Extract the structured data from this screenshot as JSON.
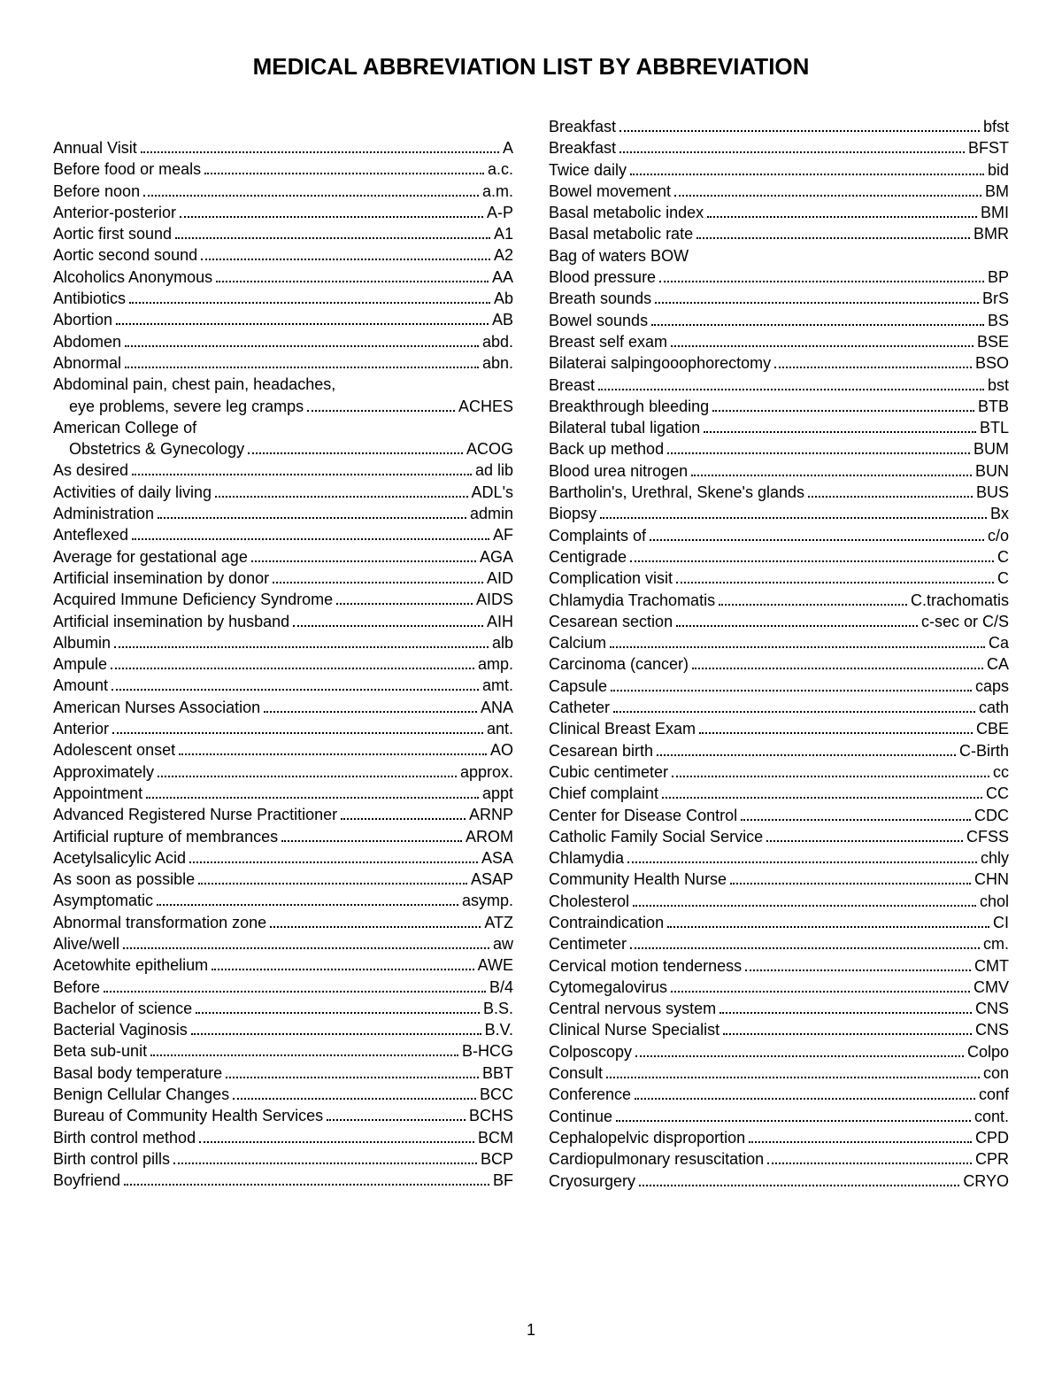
{
  "title": "MEDICAL ABBREVIATION LIST BY ABBREVIATION",
  "page_number": "1",
  "left": [
    {
      "term": "Annual Visit",
      "abbr": "A"
    },
    {
      "term": "Before food or meals",
      "abbr": "a.c."
    },
    {
      "term": "Before noon",
      "abbr": "a.m."
    },
    {
      "term": "Anterior-posterior",
      "abbr": "A-P"
    },
    {
      "term": "Aortic first sound",
      "abbr": "A1"
    },
    {
      "term": "Aortic second sound",
      "abbr": "A2"
    },
    {
      "term": "Alcoholics Anonymous",
      "abbr": "AA"
    },
    {
      "term": "Antibiotics",
      "abbr": "Ab"
    },
    {
      "term": "Abortion",
      "abbr": "AB"
    },
    {
      "term": "Abdomen",
      "abbr": "abd."
    },
    {
      "term": "Abnormal",
      "abbr": "abn."
    },
    {
      "multi": true,
      "line1": "Abdominal pain, chest pain, headaches,",
      "line2": "eye problems, severe leg cramps",
      "abbr": "ACHES"
    },
    {
      "multi": true,
      "line1": "American College of",
      "line2": "Obstetrics & Gynecology",
      "abbr": "ACOG"
    },
    {
      "term": "As desired",
      "abbr": "ad lib"
    },
    {
      "term": "Activities of daily living",
      "abbr": "ADL's"
    },
    {
      "term": "Administration",
      "abbr": "admin"
    },
    {
      "term": "Anteflexed",
      "abbr": "AF"
    },
    {
      "term": "Average for gestational age",
      "abbr": "AGA"
    },
    {
      "term": "Artificial insemination by donor",
      "abbr": "AID"
    },
    {
      "term": "Acquired Immune Deficiency Syndrome",
      "abbr": "AIDS"
    },
    {
      "term": "Artificial insemination by husband",
      "abbr": "AIH"
    },
    {
      "term": "Albumin",
      "abbr": "alb"
    },
    {
      "term": "Ampule",
      "abbr": "amp."
    },
    {
      "term": "Amount",
      "abbr": "amt."
    },
    {
      "term": "American Nurses Association",
      "abbr": "ANA"
    },
    {
      "term": "Anterior",
      "abbr": "ant."
    },
    {
      "term": "Adolescent onset",
      "abbr": "AO"
    },
    {
      "term": "Approximately",
      "abbr": "approx."
    },
    {
      "term": "Appointment",
      "abbr": "appt"
    },
    {
      "term": "Advanced Registered Nurse Practitioner",
      "abbr": "ARNP"
    },
    {
      "term": "Artificial rupture of membrances",
      "abbr": "AROM"
    },
    {
      "term": "Acetylsalicylic Acid",
      "abbr": "ASA"
    },
    {
      "term": "As soon as possible",
      "abbr": "ASAP"
    },
    {
      "term": "Asymptomatic",
      "abbr": "asymp."
    },
    {
      "term": "Abnormal transformation zone",
      "abbr": "ATZ"
    },
    {
      "term": "Alive/well",
      "abbr": "aw"
    },
    {
      "term": "Acetowhite epithelium",
      "abbr": "AWE"
    },
    {
      "term": "Before",
      "abbr": "B/4"
    },
    {
      "term": "Bachelor of science",
      "abbr": "B.S."
    },
    {
      "term": "Bacterial Vaginosis",
      "abbr": "B.V."
    },
    {
      "term": "Beta sub-unit",
      "abbr": "B-HCG"
    },
    {
      "term": "Basal body temperature",
      "abbr": "BBT"
    },
    {
      "term": "Benign Cellular Changes",
      "abbr": "BCC"
    },
    {
      "term": "Bureau of Community Health Services",
      "abbr": "BCHS"
    },
    {
      "term": "Birth control method",
      "abbr": "BCM"
    },
    {
      "term": "Birth control pills",
      "abbr": "BCP"
    },
    {
      "term": "Boyfriend",
      "abbr": "BF"
    }
  ],
  "right": [
    {
      "term": "Breakfast",
      "abbr": "bfst"
    },
    {
      "term": "Breakfast",
      "abbr": "BFST"
    },
    {
      "term": "Twice daily",
      "abbr": "bid"
    },
    {
      "term": "Bowel movement",
      "abbr": "BM"
    },
    {
      "term": "Basal metabolic index",
      "abbr": "BMI"
    },
    {
      "term": "Basal metabolic rate",
      "abbr": "BMR"
    },
    {
      "plain": true,
      "text": "Bag of waters  BOW"
    },
    {
      "term": "Blood pressure",
      "abbr": "BP"
    },
    {
      "term": "Breath sounds",
      "abbr": "BrS"
    },
    {
      "term": "Bowel sounds",
      "abbr": "BS"
    },
    {
      "term": "Breast self exam",
      "abbr": "BSE"
    },
    {
      "term": "Bilaterai salpingooophorectomy",
      "abbr": "BSO"
    },
    {
      "term": "Breast",
      "abbr": "bst"
    },
    {
      "term": "Breakthrough bleeding",
      "abbr": "BTB"
    },
    {
      "term": "Bilateral tubal ligation",
      "abbr": "BTL"
    },
    {
      "term": "Back up method",
      "abbr": "BUM"
    },
    {
      "term": "Blood urea nitrogen",
      "abbr": "BUN"
    },
    {
      "term": "Bartholin's, Urethral, Skene's glands",
      "abbr": "BUS"
    },
    {
      "term": "Biopsy",
      "abbr": "Bx"
    },
    {
      "term": "Complaints of",
      "abbr": "c/o"
    },
    {
      "term": "Centigrade",
      "abbr": "C"
    },
    {
      "term": "Complication visit",
      "abbr": "C"
    },
    {
      "term": "Chlamydia Trachomatis",
      "abbr": "C.trachomatis"
    },
    {
      "term": "Cesarean section",
      "abbr": "c-sec or C/S"
    },
    {
      "term": "Calcium",
      "abbr": "Ca"
    },
    {
      "term": "Carcinoma (cancer)",
      "abbr": "CA"
    },
    {
      "term": "Capsule",
      "abbr": "caps"
    },
    {
      "term": "Catheter",
      "abbr": "cath"
    },
    {
      "term": "Clinical Breast Exam",
      "abbr": "CBE"
    },
    {
      "term": "Cesarean birth",
      "abbr": "C-Birth"
    },
    {
      "term": "Cubic centimeter",
      "abbr": "cc"
    },
    {
      "term": "Chief complaint",
      "abbr": "CC"
    },
    {
      "term": "Center for Disease Control",
      "abbr": "CDC"
    },
    {
      "term": "Catholic Family Social Service",
      "abbr": "CFSS"
    },
    {
      "term": "Chlamydia",
      "abbr": "chly"
    },
    {
      "term": "Community Health Nurse",
      "abbr": "CHN"
    },
    {
      "term": "Cholesterol",
      "abbr": "chol"
    },
    {
      "term": "Contraindication",
      "abbr": "CI"
    },
    {
      "term": "Centimeter",
      "abbr": "cm."
    },
    {
      "term": "Cervical motion tenderness",
      "abbr": "CMT"
    },
    {
      "term": "Cytomegalovirus",
      "abbr": "CMV"
    },
    {
      "term": "Central nervous system",
      "abbr": "CNS"
    },
    {
      "term": "Clinical Nurse Specialist",
      "abbr": "CNS"
    },
    {
      "term": "Colposcopy",
      "abbr": "Colpo"
    },
    {
      "term": "Consult",
      "abbr": "con"
    },
    {
      "term": "Conference",
      "abbr": "conf"
    },
    {
      "term": "Continue",
      "abbr": "cont."
    },
    {
      "term": "Cephalopelvic disproportion",
      "abbr": "CPD"
    },
    {
      "term": "Cardiopulmonary resuscitation",
      "abbr": "CPR"
    },
    {
      "term": "Cryosurgery",
      "abbr": "CRYO"
    }
  ]
}
